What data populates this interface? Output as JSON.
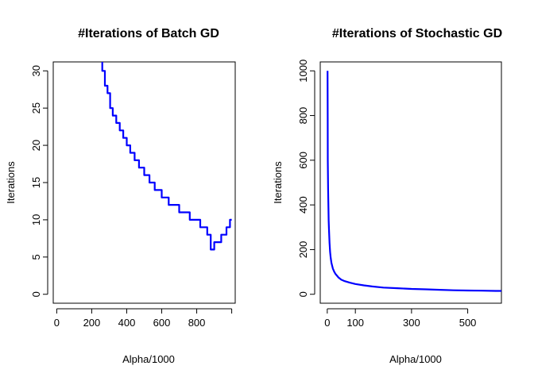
{
  "colors": {
    "series": "#0000ff",
    "axis": "#000000",
    "background": "#ffffff"
  },
  "chart_data": [
    {
      "type": "line",
      "title": "#Iterations of Batch GD",
      "xlabel": "Alpha/1000",
      "ylabel": "Iterations",
      "xlim": [
        -20,
        1020
      ],
      "ylim": [
        -1.2,
        31.2
      ],
      "xticks": [
        0,
        200,
        400,
        600,
        800
      ],
      "yticks": [
        0,
        5,
        10,
        15,
        20,
        25,
        30
      ],
      "grid": false,
      "step": true,
      "series": [
        {
          "x": [
            240,
            260,
            275,
            290,
            305,
            320,
            340,
            360,
            380,
            400,
            420,
            445,
            470,
            500,
            530,
            560,
            600,
            640,
            700,
            760,
            820,
            860,
            880,
            900,
            940,
            970,
            990,
            1000
          ],
          "values": [
            32,
            30,
            28,
            27,
            25,
            24,
            23,
            22,
            21,
            20,
            19,
            18,
            17,
            16,
            15,
            14,
            13,
            12,
            11,
            10,
            9,
            8,
            6,
            7,
            8,
            9,
            10,
            10
          ]
        }
      ]
    },
    {
      "type": "line",
      "title": "#Iterations of Stochastic GD",
      "xlabel": "Alpha/1000",
      "ylabel": "Iterations",
      "xlim": [
        -25,
        620
      ],
      "ylim": [
        -40,
        1040
      ],
      "xticks": [
        0,
        100,
        300,
        500
      ],
      "yticks": [
        0,
        200,
        400,
        600,
        800,
        1000
      ],
      "grid": false,
      "step": false,
      "series": [
        {
          "x": [
            1,
            1.5,
            2,
            3,
            4,
            5,
            6,
            8,
            10,
            12,
            15,
            20,
            25,
            30,
            40,
            50,
            60,
            80,
            100,
            130,
            160,
            200,
            250,
            300,
            350,
            400,
            450,
            500,
            550,
            600,
            620
          ],
          "values": [
            1000,
            780,
            600,
            470,
            390,
            330,
            290,
            230,
            190,
            165,
            140,
            115,
            100,
            90,
            75,
            65,
            60,
            52,
            46,
            40,
            35,
            30,
            27,
            24,
            22,
            20,
            18,
            17,
            16,
            15,
            15
          ]
        }
      ]
    }
  ]
}
